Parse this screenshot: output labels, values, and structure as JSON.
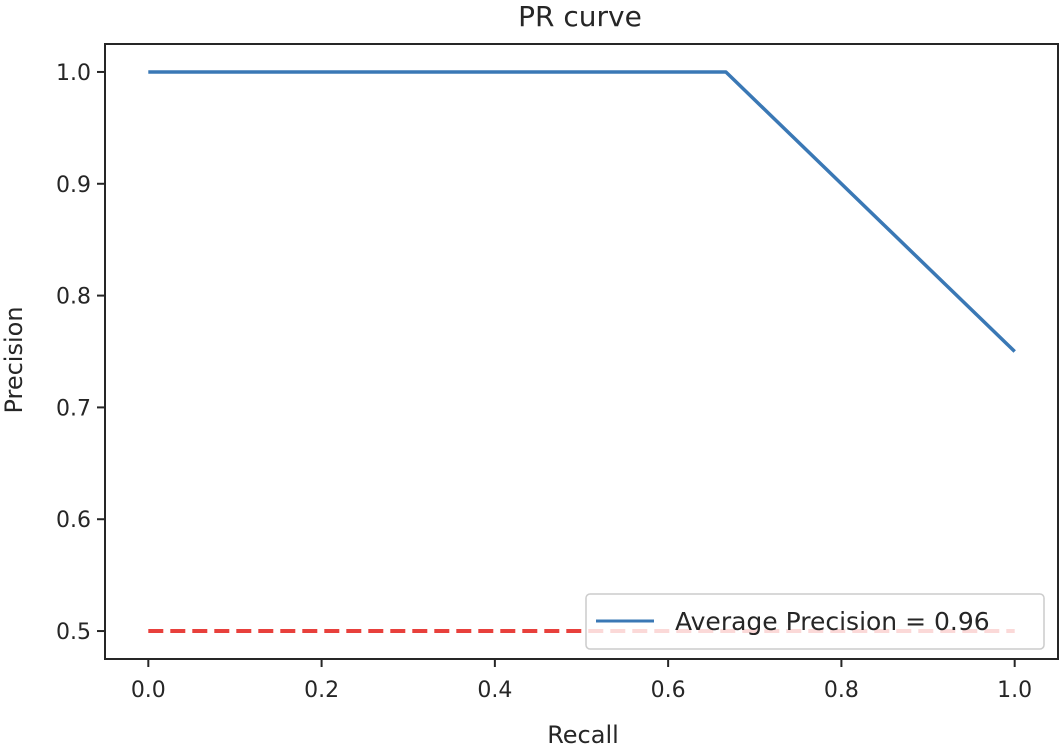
{
  "chart_data": {
    "type": "line",
    "title": "PR curve",
    "xlabel": "Recall",
    "ylabel": "Precision",
    "xlim": [
      -0.05,
      1.05
    ],
    "ylim": [
      0.475,
      1.025
    ],
    "xticks": [
      0.0,
      0.2,
      0.4,
      0.6,
      0.8,
      1.0
    ],
    "xtick_labels": [
      "0.0",
      "0.2",
      "0.4",
      "0.6",
      "0.8",
      "1.0"
    ],
    "yticks": [
      0.5,
      0.6,
      0.7,
      0.8,
      0.9,
      1.0
    ],
    "ytick_labels": [
      "0.5",
      "0.6",
      "0.7",
      "0.8",
      "0.9",
      "1.0"
    ],
    "grid": false,
    "legend": {
      "placement": "lower-right"
    },
    "series": [
      {
        "name": "Average Precision = 0.96",
        "color": "#3a78b5",
        "style": "solid",
        "x": [
          0.0,
          0.6667,
          1.0
        ],
        "y": [
          1.0,
          1.0,
          0.75
        ]
      },
      {
        "color": "#e8403c",
        "style": "dashed",
        "x": [
          0.0,
          1.0
        ],
        "y": [
          0.5,
          0.5
        ]
      }
    ]
  }
}
